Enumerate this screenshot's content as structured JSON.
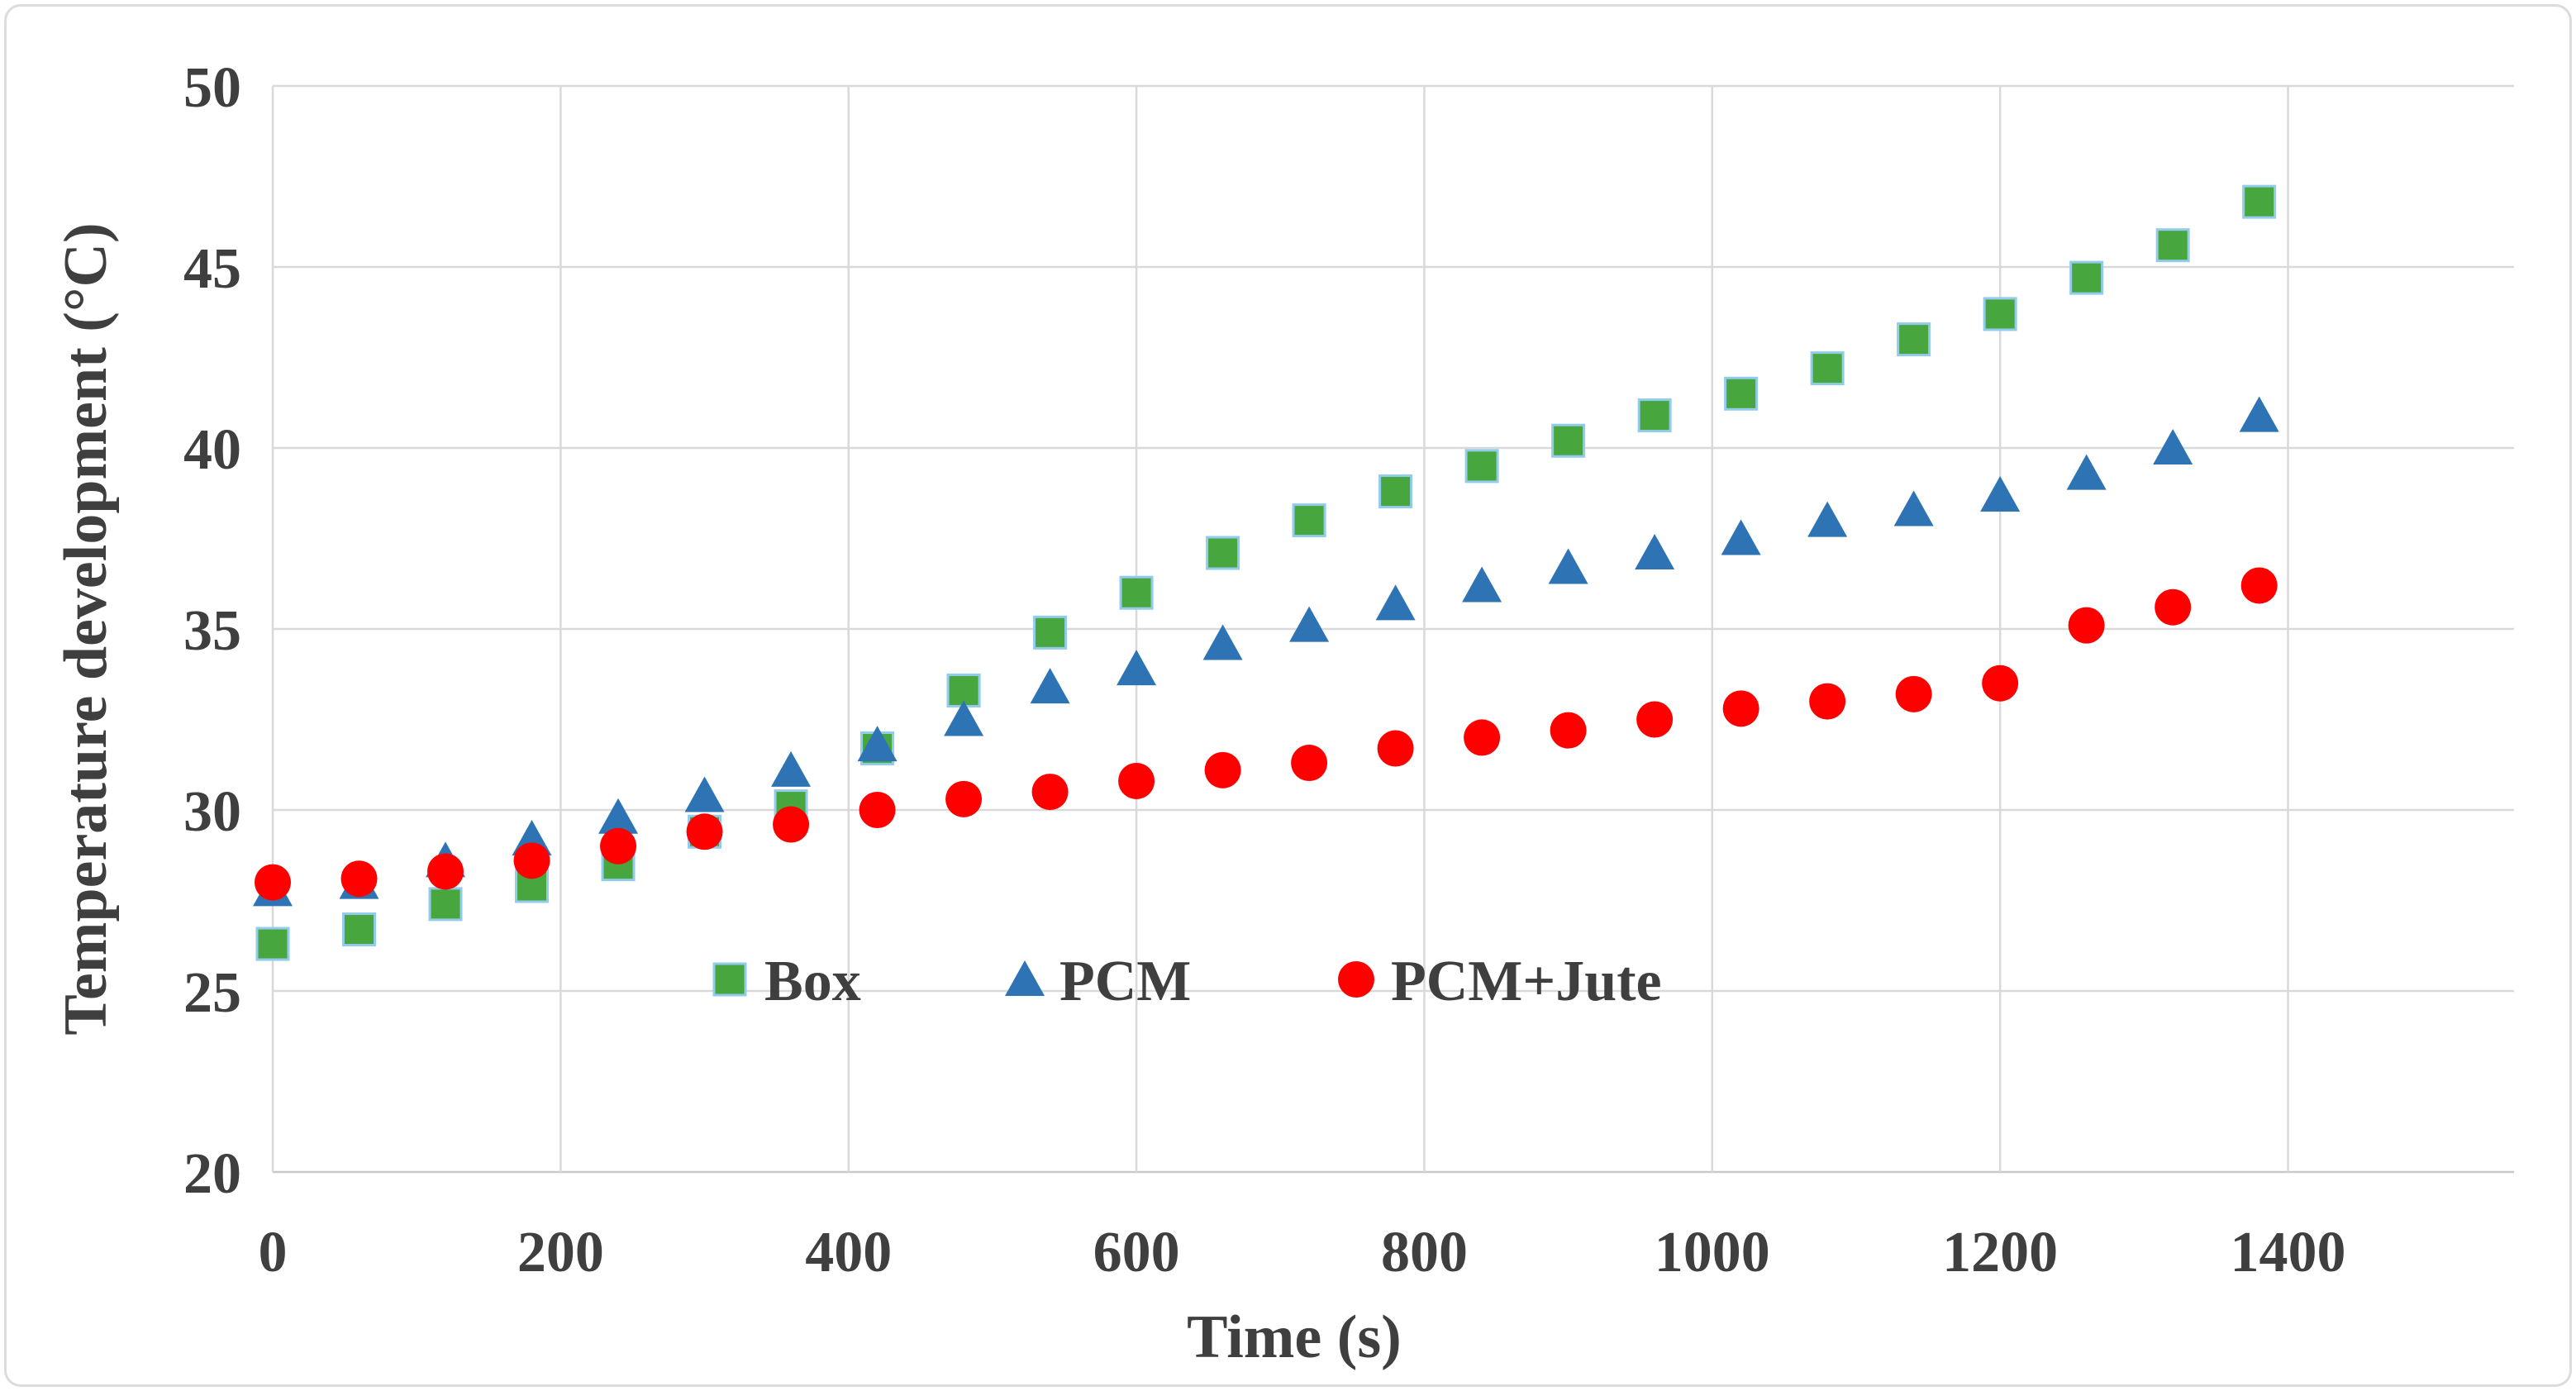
{
  "figure": {
    "background": "#ffffff",
    "border_color": "#dcdcdc"
  },
  "colors": {
    "grid": "#d9d9d9",
    "axis_line": "#c9c9c9",
    "text": "#3f3f3f",
    "box_green": "#47a63d",
    "box_green_border": "#92cbec",
    "pcm_blue": "#2e74b5",
    "jute_red": "#fe0000"
  },
  "chart_data": {
    "type": "scatter",
    "title": "",
    "xlabel": "Time (s)",
    "ylabel": "Temperature development (°C)",
    "x_ticks": [
      0,
      200,
      400,
      600,
      800,
      1000,
      1200,
      1400
    ],
    "y_ticks": [
      20,
      25,
      30,
      35,
      40,
      45,
      50
    ],
    "xlim": [
      0,
      1557
    ],
    "ylim": [
      20,
      50
    ],
    "grid": true,
    "legend_position": "inside-bottom-center",
    "x": [
      0,
      60,
      120,
      180,
      240,
      300,
      360,
      420,
      480,
      540,
      600,
      660,
      720,
      780,
      840,
      900,
      960,
      1020,
      1080,
      1140,
      1200,
      1260,
      1320,
      1380
    ],
    "series": [
      {
        "name": "Box",
        "marker": "square",
        "color": "#47a63d",
        "border": "#92cbec",
        "values": [
          26.3,
          26.7,
          27.4,
          27.9,
          28.5,
          29.4,
          30.1,
          31.7,
          33.3,
          34.9,
          36.0,
          37.1,
          38.0,
          38.8,
          39.5,
          40.2,
          40.9,
          41.5,
          42.2,
          43.0,
          43.7,
          44.7,
          45.6,
          46.8
        ]
      },
      {
        "name": "PCM",
        "marker": "triangle",
        "color": "#2e74b5",
        "border": "#2e74b5",
        "values": [
          27.8,
          28.0,
          28.6,
          29.2,
          29.8,
          30.4,
          31.1,
          31.8,
          32.5,
          33.4,
          33.9,
          34.6,
          35.1,
          35.7,
          36.2,
          36.7,
          37.1,
          37.5,
          38.0,
          38.3,
          38.7,
          39.3,
          40.0,
          40.9
        ]
      },
      {
        "name": "PCM+Jute",
        "marker": "circle",
        "color": "#fe0000",
        "border": "#fe0000",
        "values": [
          28.0,
          28.1,
          28.3,
          28.6,
          29.0,
          29.4,
          29.6,
          30.0,
          30.3,
          30.5,
          30.8,
          31.1,
          31.3,
          31.7,
          32.0,
          32.2,
          32.5,
          32.8,
          33.0,
          33.2,
          33.5,
          35.1,
          35.6,
          36.2
        ]
      }
    ]
  }
}
